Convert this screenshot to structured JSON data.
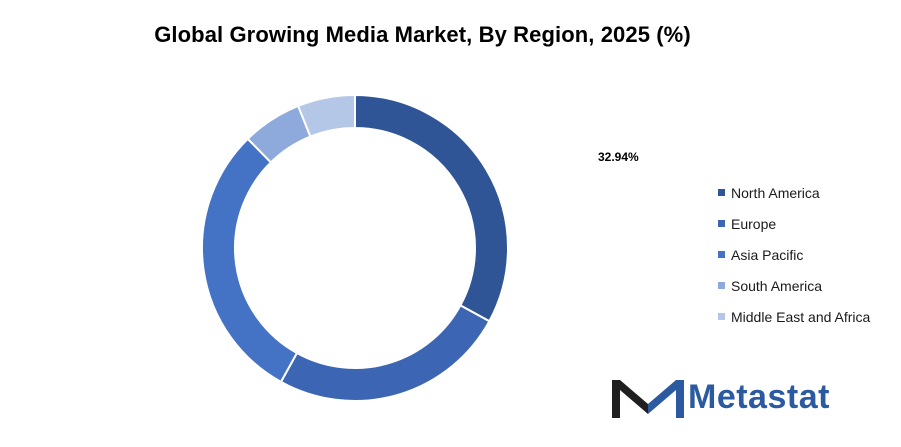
{
  "chart_data": {
    "type": "pie",
    "title": "Global Growing Media Market, By Region, 2025 (%)",
    "donut": true,
    "annotations": [
      "32.94%"
    ],
    "legend_position": "right",
    "series": [
      {
        "categories": [
          "North America",
          "Europe",
          "Asia Pacific",
          "South America",
          "Middle East and Africa"
        ],
        "values": [
          32.94,
          25.1,
          29.6,
          6.3,
          6.06
        ],
        "colors": [
          "#2f5597",
          "#3c65b4",
          "#4472c4",
          "#8ea9db",
          "#b4c7e7"
        ]
      }
    ]
  },
  "legend": {
    "items": [
      {
        "label": "North America",
        "color": "#2f5597"
      },
      {
        "label": "Europe",
        "color": "#3c65b4"
      },
      {
        "label": "Asia Pacific",
        "color": "#4472c4"
      },
      {
        "label": "South America",
        "color": "#8ea9db"
      },
      {
        "label": "Middle East and Africa",
        "color": "#b4c7e7"
      }
    ]
  },
  "logo": {
    "text": "Metastat",
    "icon": "metastat-m-logo",
    "color": "#2c5aa0",
    "dark_color": "#1f1f1f"
  }
}
